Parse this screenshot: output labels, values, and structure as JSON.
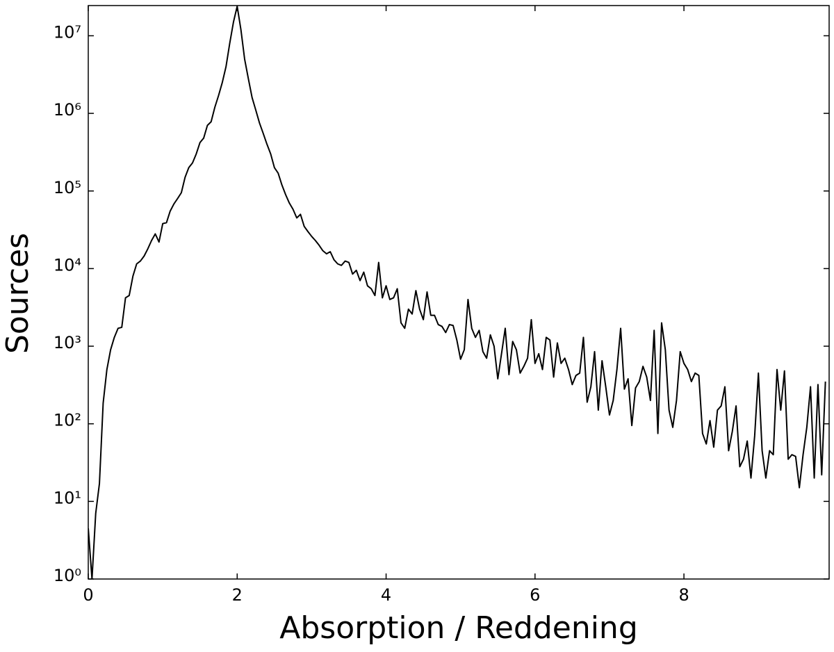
{
  "chart_data": {
    "type": "line",
    "xlabel": "Absorption / Reddening",
    "ylabel": "Sources",
    "log_y": true,
    "color": "#000000",
    "xlim": [
      0,
      9.95
    ],
    "ylim": [
      1,
      24500000
    ],
    "xticks": [
      0,
      2,
      4,
      6,
      8
    ],
    "yticks": [
      {
        "value": 1,
        "label": "10⁰"
      },
      {
        "value": 10,
        "label": "10¹"
      },
      {
        "value": 100,
        "label": "10²"
      },
      {
        "value": 1000,
        "label": "10³"
      },
      {
        "value": 10000,
        "label": "10⁴"
      },
      {
        "value": 100000,
        "label": "10⁵"
      },
      {
        "value": 1000000,
        "label": "10⁶"
      },
      {
        "value": 10000000,
        "label": "10⁷"
      }
    ],
    "x": [
      0,
      0.05,
      0.1,
      0.15,
      0.2,
      0.25,
      0.3,
      0.35,
      0.4,
      0.45,
      0.5,
      0.55,
      0.6,
      0.65,
      0.7,
      0.75,
      0.8,
      0.85,
      0.9,
      0.95,
      1,
      1.05,
      1.1,
      1.15,
      1.2,
      1.25,
      1.3,
      1.35,
      1.4,
      1.45,
      1.5,
      1.55,
      1.6,
      1.65,
      1.7,
      1.75,
      1.8,
      1.85,
      1.9,
      1.95,
      2,
      2.05,
      2.1,
      2.15,
      2.2,
      2.25,
      2.3,
      2.35,
      2.4,
      2.45,
      2.5,
      2.55,
      2.6,
      2.65,
      2.7,
      2.75,
      2.8,
      2.85,
      2.9,
      2.95,
      3,
      3.05,
      3.1,
      3.15,
      3.2,
      3.25,
      3.3,
      3.35,
      3.4,
      3.45,
      3.5,
      3.55,
      3.6,
      3.65,
      3.7,
      3.75,
      3.8,
      3.85,
      3.9,
      3.95,
      4,
      4.05,
      4.1,
      4.15,
      4.2,
      4.25,
      4.3,
      4.35,
      4.4,
      4.45,
      4.5,
      4.55,
      4.6,
      4.65,
      4.7,
      4.75,
      4.8,
      4.85,
      4.9,
      4.95,
      5,
      5.05,
      5.1,
      5.15,
      5.2,
      5.25,
      5.3,
      5.35,
      5.4,
      5.45,
      5.5,
      5.55,
      5.6,
      5.65,
      5.7,
      5.75,
      5.8,
      5.85,
      5.9,
      5.95,
      6,
      6.05,
      6.1,
      6.15,
      6.2,
      6.25,
      6.3,
      6.35,
      6.4,
      6.45,
      6.5,
      6.55,
      6.6,
      6.65,
      6.7,
      6.75,
      6.8,
      6.85,
      6.9,
      6.95,
      7,
      7.05,
      7.1,
      7.15,
      7.2,
      7.25,
      7.3,
      7.35,
      7.4,
      7.45,
      7.5,
      7.55,
      7.6,
      7.65,
      7.7,
      7.75,
      7.8,
      7.85,
      7.9,
      7.95,
      8,
      8.05,
      8.1,
      8.15,
      8.2,
      8.25,
      8.3,
      8.35,
      8.4,
      8.45,
      8.5,
      8.55,
      8.6,
      8.65,
      8.7,
      8.75,
      8.8,
      8.85,
      8.9,
      8.95,
      9,
      9.05,
      9.1,
      9.15,
      9.2,
      9.25,
      9.3,
      9.35,
      9.4,
      9.45,
      9.5,
      9.55,
      9.6,
      9.65,
      9.7,
      9.75,
      9.8,
      9.85,
      9.9
    ],
    "values": [
      4.5,
      1,
      7,
      17,
      185,
      500,
      900,
      1300,
      1700,
      1750,
      4200,
      4500,
      8000,
      11500,
      12500,
      14500,
      18000,
      23000,
      28000,
      22000,
      38000,
      39000,
      55000,
      68000,
      80000,
      95000,
      150000,
      200000,
      230000,
      300000,
      420000,
      480000,
      700000,
      780000,
      1200000,
      1700000,
      2500000,
      4000000,
      8000000,
      15000000,
      24000000,
      12000000,
      5000000,
      2800000,
      1600000,
      1100000,
      750000,
      550000,
      400000,
      300000,
      200000,
      170000,
      120000,
      90000,
      70000,
      58000,
      45000,
      50000,
      35000,
      30000,
      26000,
      23000,
      20000,
      17000,
      15500,
      16500,
      13000,
      11500,
      11000,
      12500,
      12000,
      8500,
      9500,
      7000,
      9000,
      6000,
      5500,
      4500,
      12000,
      4200,
      6000,
      4000,
      4200,
      5500,
      2000,
      1700,
      3000,
      2600,
      5200,
      3000,
      2200,
      5000,
      2500,
      2500,
      1900,
      1800,
      1500,
      1900,
      1850,
      1200,
      680,
      900,
      4000,
      1700,
      1300,
      1600,
      850,
      700,
      1400,
      1000,
      380,
      800,
      1700,
      430,
      1150,
      900,
      450,
      550,
      700,
      2200,
      600,
      800,
      500,
      1300,
      1200,
      400,
      1100,
      600,
      700,
      500,
      320,
      420,
      450,
      1300,
      190,
      300,
      850,
      150,
      650,
      300,
      130,
      200,
      500,
      1700,
      280,
      380,
      95,
      290,
      350,
      550,
      400,
      200,
      1600,
      75,
      2000,
      900,
      150,
      90,
      200,
      850,
      600,
      500,
      350,
      450,
      420,
      75,
      55,
      110,
      50,
      150,
      170,
      300,
      45,
      80,
      170,
      28,
      35,
      60,
      20,
      70,
      450,
      45,
      20,
      45,
      40,
      500,
      150,
      480,
      35,
      40,
      38,
      15,
      40,
      90,
      300,
      20,
      320,
      22,
      350
    ]
  }
}
